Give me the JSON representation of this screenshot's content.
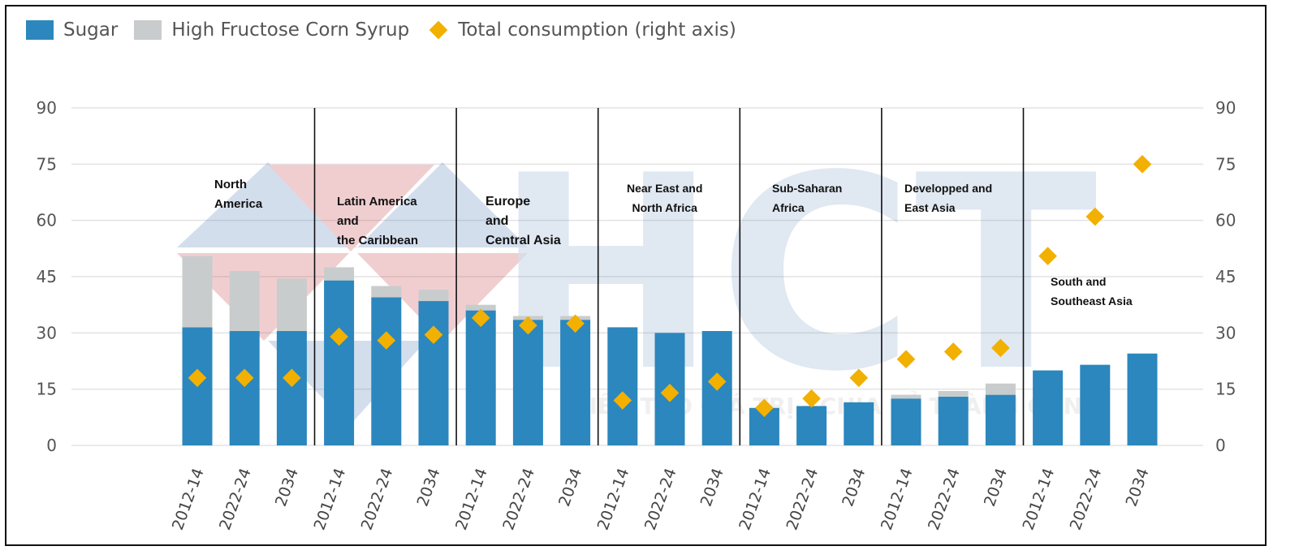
{
  "chart_data": {
    "type": "bar",
    "stacked": true,
    "legend_position": "top-left",
    "grid": true,
    "legend": [
      {
        "name": "Sugar",
        "color": "#2b87bd",
        "marker": "square"
      },
      {
        "name": "High Fructose Corn Syrup",
        "color": "#c9cccc",
        "marker": "square"
      },
      {
        "name": "Total consumption (right axis)",
        "color": "#f2b000",
        "marker": "diamond"
      }
    ],
    "ylim": [
      0,
      90
    ],
    "y_ticks": [
      "0",
      "15",
      "30",
      "45",
      "60",
      "75",
      "90"
    ],
    "y2lim": [
      0,
      90
    ],
    "y2_ticks": [
      "0",
      "15",
      "30",
      "45",
      "60",
      "75",
      "90"
    ],
    "groups": [
      {
        "region": "North\nAmerica",
        "periods": [
          "2012-14",
          "2022-24",
          "2034"
        ],
        "sugar": [
          31.5,
          30.5,
          30.5
        ],
        "hfcs": [
          19,
          16,
          14
        ],
        "total": [
          18,
          18,
          18
        ]
      },
      {
        "region": "Latin America\nand\nthe Caribbean",
        "periods": [
          "2012-14",
          "2022-24",
          "2034"
        ],
        "sugar": [
          44,
          39.5,
          38.5
        ],
        "hfcs": [
          3.5,
          3,
          3
        ],
        "total": [
          29,
          28,
          29.5
        ]
      },
      {
        "region": "Europe\nand\nCentral Asia",
        "periods": [
          "2012-14",
          "2022-24",
          "2034"
        ],
        "sugar": [
          36,
          33.5,
          33.5
        ],
        "hfcs": [
          1.5,
          1,
          1
        ],
        "total": [
          34,
          32,
          32.5
        ]
      },
      {
        "region": "Near East and\nNorth Africa",
        "periods": [
          "2012-14",
          "2022-24",
          "2034"
        ],
        "sugar": [
          31.5,
          30,
          30.5
        ],
        "hfcs": [
          0,
          0,
          0
        ],
        "total": [
          12,
          14,
          17
        ]
      },
      {
        "region": "Sub-Saharan\nAfrica",
        "periods": [
          "2012-14",
          "2022-24",
          "2034"
        ],
        "sugar": [
          10,
          10.5,
          11.5
        ],
        "hfcs": [
          0,
          0,
          0
        ],
        "total": [
          10,
          12.5,
          18
        ]
      },
      {
        "region": "Developped and\nEast Asia",
        "periods": [
          "2012-14",
          "2022-24",
          "2034"
        ],
        "sugar": [
          12.5,
          13,
          13.5
        ],
        "hfcs": [
          1,
          1.5,
          3
        ],
        "total": [
          23,
          25,
          26
        ]
      },
      {
        "region": "South and\nSoutheast Asia",
        "periods": [
          "2012-14",
          "2022-24",
          "2034"
        ],
        "sugar": [
          20,
          21.5,
          24.5
        ],
        "hfcs": [
          0,
          0,
          0
        ],
        "total": [
          50.5,
          61,
          75
        ]
      }
    ]
  },
  "watermark": {
    "logo": "HCT",
    "slogan": "KIẾN TẠO GIÁ TRỊ - CHIA SẺ THÀNH CÔNG"
  }
}
